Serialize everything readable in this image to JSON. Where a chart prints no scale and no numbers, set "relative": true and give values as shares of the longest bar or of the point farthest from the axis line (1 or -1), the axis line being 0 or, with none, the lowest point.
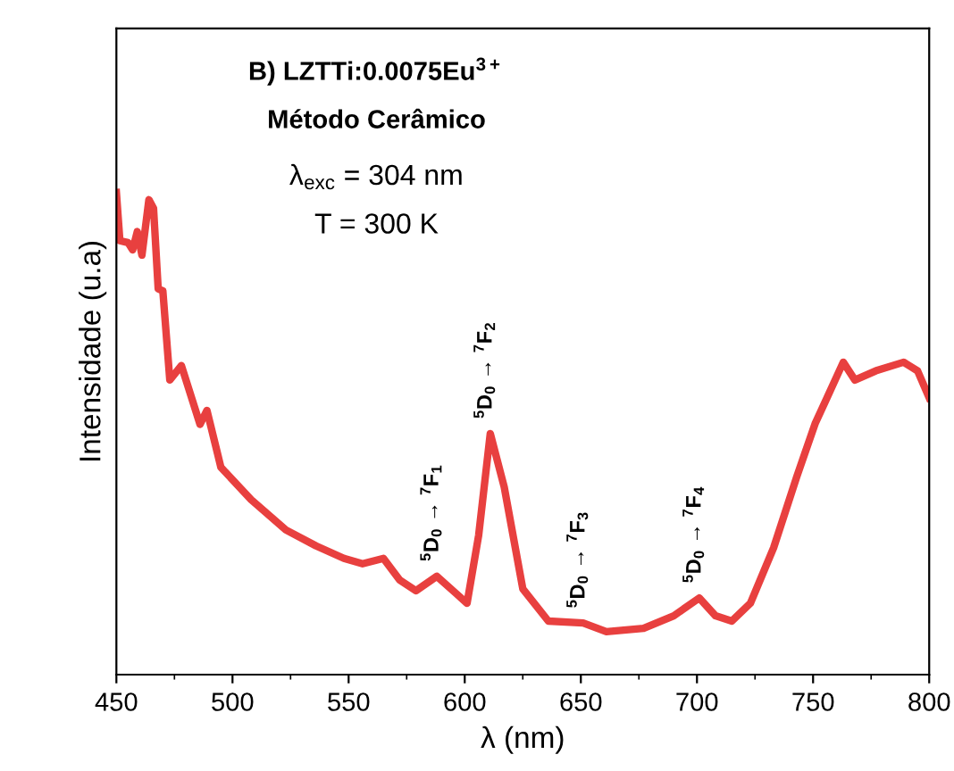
{
  "chart_data": {
    "type": "line",
    "title": "B) LZTTi:0.0075Eu$^{3+}$",
    "subtitle": "Método Cerâmico",
    "xlabel": "λ (nm)",
    "ylabel": "Intensidade (u.a)",
    "relative": true,
    "tick_labels": "x",
    "legend": false,
    "grid": false,
    "xlim": [
      450,
      800
    ],
    "xticks": [
      450,
      500,
      550,
      600,
      650,
      700,
      750,
      800
    ],
    "annotations": [
      "λ$_{exc}$ = 304 nm",
      "T = 300 K",
      {
        "text": "$^{5}$D$_{0}$ → $^{7}$F$_{1}$",
        "x": 588,
        "y": 0.204
      },
      {
        "text": "$^{5}$D$_{0}$ → $^{7}$F$_{2}$",
        "x": 611,
        "y": 0.5
      },
      {
        "text": "$^{5}$D$_{0}$ → $^{7}$F$_{3}$",
        "x": 651,
        "y": 0.107
      },
      {
        "text": "$^{5}$D$_{0}$ → $^{7}$F$_{4}$",
        "x": 701,
        "y": 0.159
      }
    ],
    "series": [
      {
        "color": "#e8403f",
        "x": [
          450,
          451.5,
          455,
          457,
          459,
          461,
          464,
          466,
          468,
          470,
          473,
          478,
          486,
          489,
          495,
          508,
          523,
          536,
          548,
          556,
          565,
          572,
          579,
          588,
          601,
          606,
          611,
          617,
          625,
          636,
          651,
          661,
          677,
          690,
          701,
          708,
          715,
          723,
          733,
          743,
          751,
          756,
          763,
          768,
          777,
          789,
          795,
          800
        ],
        "values": [
          1.0,
          0.9,
          0.896,
          0.881,
          0.919,
          0.87,
          0.985,
          0.967,
          0.8,
          0.796,
          0.611,
          0.641,
          0.519,
          0.548,
          0.43,
          0.363,
          0.3,
          0.267,
          0.241,
          0.23,
          0.241,
          0.196,
          0.174,
          0.204,
          0.148,
          0.289,
          0.5,
          0.389,
          0.178,
          0.111,
          0.107,
          0.089,
          0.096,
          0.122,
          0.159,
          0.122,
          0.111,
          0.148,
          0.263,
          0.411,
          0.522,
          0.574,
          0.648,
          0.611,
          0.63,
          0.648,
          0.63,
          0.574
        ]
      }
    ]
  }
}
